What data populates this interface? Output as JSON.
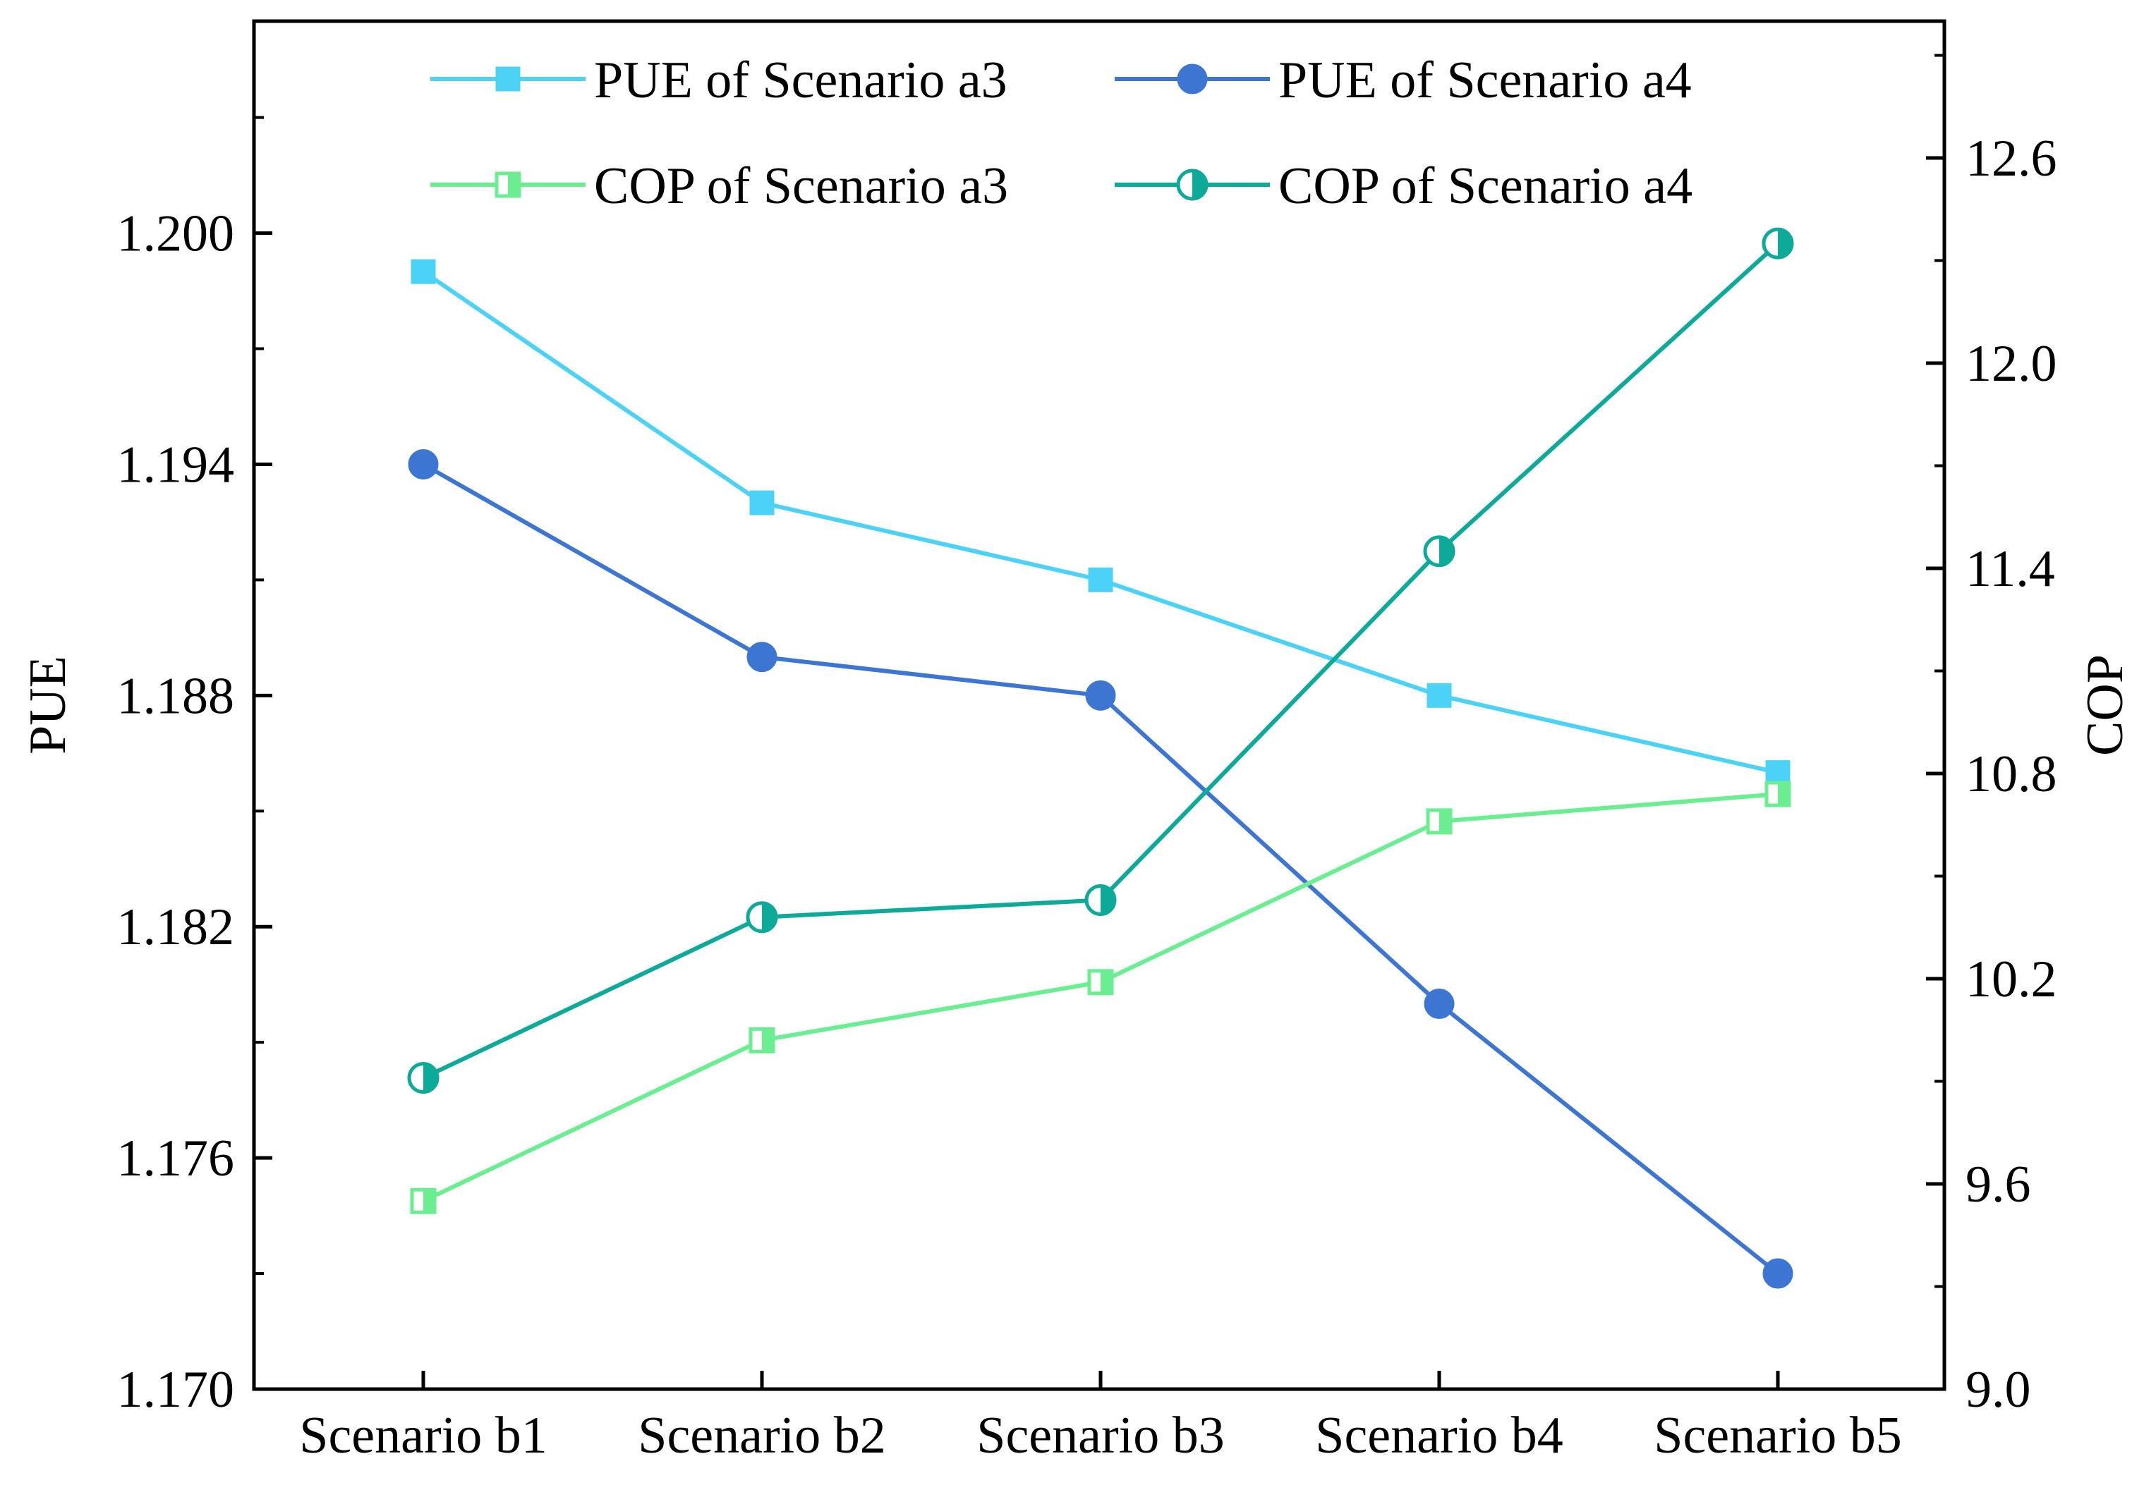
{
  "chart_data": {
    "type": "line",
    "categories": [
      "Scenario b1",
      "Scenario b2",
      "Scenario b3",
      "Scenario b4",
      "Scenario b5"
    ],
    "y_left": {
      "label": "PUE",
      "range": [
        1.17,
        1.2055
      ],
      "ticks": [
        1.17,
        1.176,
        1.182,
        1.188,
        1.194,
        1.2
      ],
      "tick_labels": [
        "1.170",
        "1.176",
        "1.182",
        "1.188",
        "1.194",
        "1.200"
      ]
    },
    "y_right": {
      "label": "COP",
      "range": [
        9.0,
        12.6
      ],
      "ticks": [
        9.0,
        9.6,
        10.2,
        10.8,
        11.4,
        12.0,
        12.6
      ],
      "tick_labels": [
        "9.0",
        "9.6",
        "10.2",
        "10.8",
        "11.4",
        "12.0",
        "12.6"
      ]
    },
    "series": [
      {
        "name": "PUE of Scenario a3",
        "axis": "left",
        "marker": "square-filled",
        "color": "#4DD2F7",
        "values": [
          1.199,
          1.193,
          1.191,
          1.188,
          1.186
        ]
      },
      {
        "name": "PUE of Scenario a4",
        "axis": "left",
        "marker": "circle-filled",
        "color": "#3D75D3",
        "values": [
          1.194,
          1.189,
          1.188,
          1.18,
          1.173
        ]
      },
      {
        "name": "COP of Scenario a3",
        "axis": "right",
        "marker": "square-half",
        "color": "#6BEE92",
        "values": [
          9.55,
          10.02,
          10.19,
          10.66,
          10.74
        ]
      },
      {
        "name": "COP of Scenario a4",
        "axis": "right",
        "marker": "circle-half",
        "color": "#0DA999",
        "values": [
          9.91,
          10.38,
          10.43,
          11.45,
          12.35
        ]
      }
    ],
    "legend_position": "top-center",
    "grid": false
  }
}
